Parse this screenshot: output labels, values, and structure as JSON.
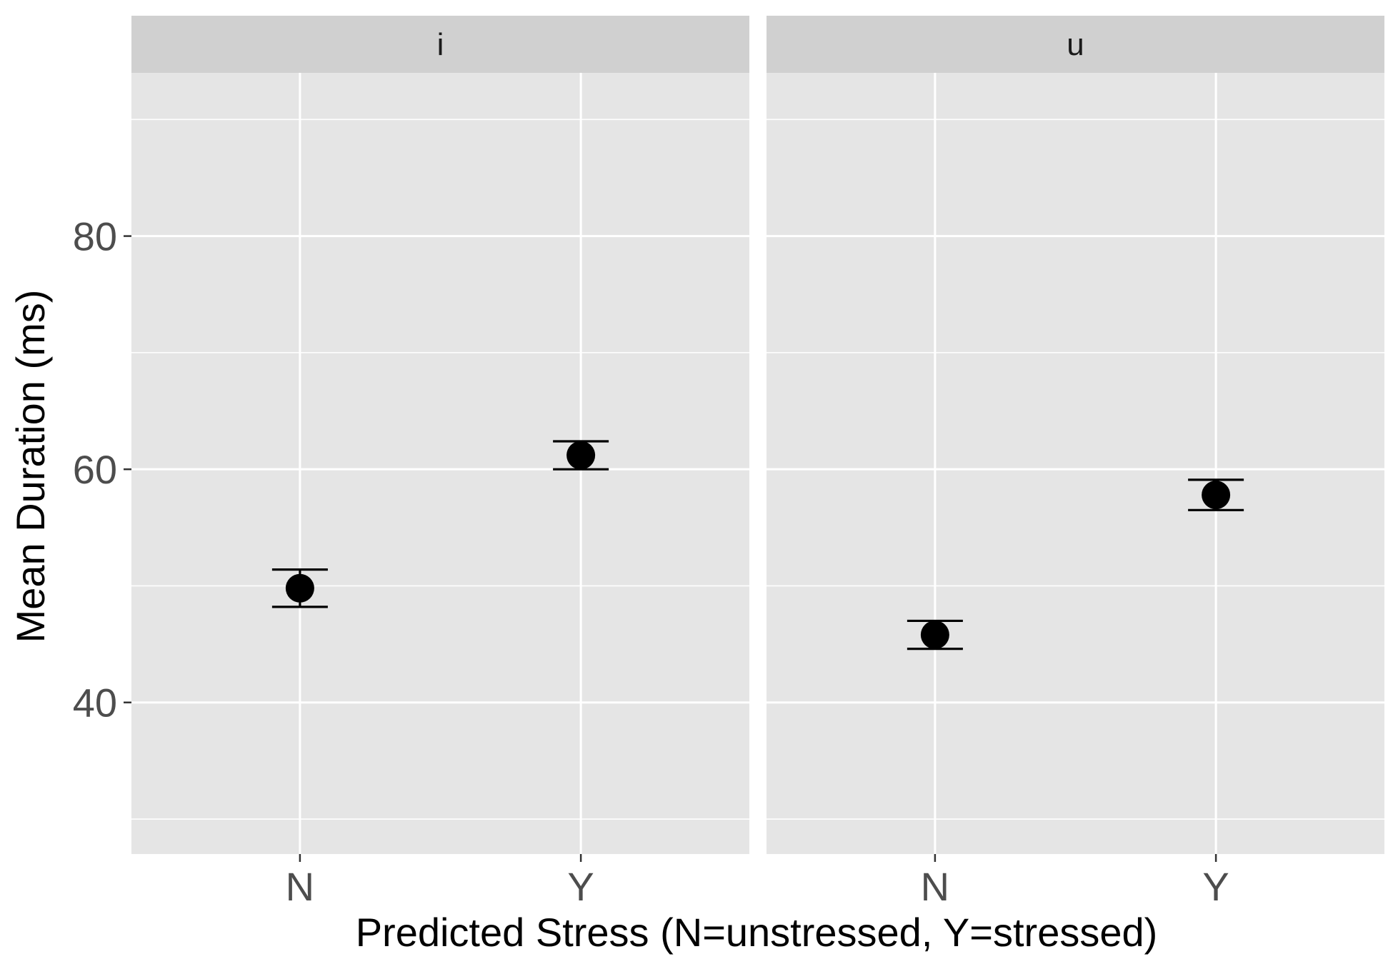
{
  "chart_data": {
    "type": "scatter",
    "subtype": "point-with-errorbars, faceted",
    "title": "",
    "xlabel": "Predicted Stress (N=unstressed, Y=stressed)",
    "ylabel": "Mean Duration (ms)",
    "ylim": [
      27,
      94
    ],
    "y_major_ticks": [
      40,
      60,
      80
    ],
    "y_minor_ticks": [
      30,
      50,
      70,
      90
    ],
    "categories": [
      "N",
      "Y"
    ],
    "grid": true,
    "legend": "none",
    "facets": [
      {
        "label": "i",
        "points": [
          {
            "x": "N",
            "y": 49.8,
            "ymin": 48.2,
            "ymax": 51.4
          },
          {
            "x": "Y",
            "y": 61.2,
            "ymin": 60.0,
            "ymax": 62.4
          }
        ]
      },
      {
        "label": "u",
        "points": [
          {
            "x": "N",
            "y": 45.8,
            "ymin": 44.6,
            "ymax": 47.0
          },
          {
            "x": "Y",
            "y": 57.8,
            "ymin": 56.5,
            "ymax": 59.1
          }
        ]
      }
    ],
    "colors": {
      "panel_bg": "#e5e5e5",
      "grid": "#ffffff",
      "strip_bg": "#d0d0d0",
      "point": "#000000"
    }
  }
}
